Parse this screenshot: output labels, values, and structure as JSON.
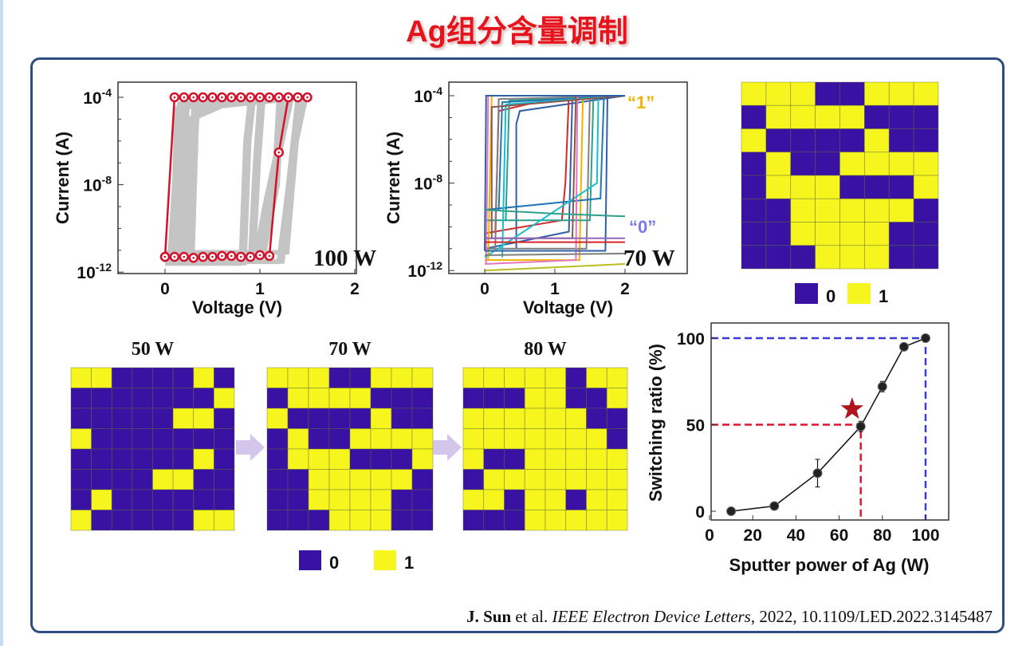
{
  "title": "Ag组分含量调制",
  "colors": {
    "state0": "#3a12a3",
    "state1": "#f6f51e",
    "title": "#e5141c",
    "panel_border": "#2c4d7e",
    "label1": "#f0b400",
    "label0": "#7d78e6",
    "red_curve": "#d4112a",
    "gray_curve": "#c4c4c4",
    "red_dash": "#e0142c",
    "blue_dash": "#3a3ad8",
    "star": "#b0141c"
  },
  "citation": {
    "author": "J. Sun",
    "etal": " et al. ",
    "journal": "IEEE Electron Device Letters",
    "rest": ", 2022, 10.1109/LED.2022.3145487"
  },
  "chart_data": [
    {
      "type": "line",
      "id": "iv-100w",
      "xlabel": "Voltage (V)",
      "ylabel": "Current (A)",
      "xlim": [
        -0.5,
        2
      ],
      "ylim": [
        7e-13,
        0.0005
      ],
      "yscale": "log",
      "xticks": [
        "0",
        "1",
        "2"
      ],
      "xtick_values": [
        0,
        1,
        2
      ],
      "yticks": [
        {
          "base": "10",
          "exp": "-4",
          "value": 0.0001
        },
        {
          "base": "10",
          "exp": "-8",
          "value": 1e-08
        },
        {
          "base": "10",
          "exp": "-12",
          "value": 1e-12
        }
      ],
      "annotation": "100 W",
      "highlight": [
        [
          0,
          5e-12
        ],
        [
          0.1,
          5e-12
        ],
        [
          0.2,
          5e-12
        ],
        [
          0.3,
          4.5e-12
        ],
        [
          0.4,
          5e-12
        ],
        [
          0.5,
          5e-12
        ],
        [
          0.6,
          5.5e-12
        ],
        [
          0.7,
          5.5e-12
        ],
        [
          0.8,
          5e-12
        ],
        [
          0.9,
          5e-12
        ],
        [
          1.0,
          6e-12
        ],
        [
          1.1,
          5.5e-12
        ],
        [
          1.2,
          3e-07
        ],
        [
          1.3,
          0.0001
        ],
        [
          1.4,
          0.0001
        ],
        [
          1.5,
          0.0001
        ],
        [
          1.4,
          0.0001
        ],
        [
          1.3,
          0.0001
        ],
        [
          1.2,
          0.0001
        ],
        [
          1.1,
          0.0001
        ],
        [
          1.0,
          0.0001
        ],
        [
          0.9,
          0.0001
        ],
        [
          0.8,
          0.0001
        ],
        [
          0.7,
          0.0001
        ],
        [
          0.6,
          0.0001
        ],
        [
          0.5,
          0.0001
        ],
        [
          0.4,
          0.0001
        ],
        [
          0.3,
          0.0001
        ],
        [
          0.2,
          0.0001
        ],
        [
          0.1,
          0.0001
        ],
        [
          0,
          5e-12
        ]
      ],
      "background_curves": [
        [
          [
            0,
            4e-12
          ],
          [
            0.95,
            4e-12
          ],
          [
            1.05,
            1e-09
          ],
          [
            1.3,
            0.0001
          ],
          [
            1.45,
            0.0001
          ],
          [
            0.5,
            7e-05
          ],
          [
            0.15,
            5e-05
          ],
          [
            0.05,
            4e-12
          ]
        ],
        [
          [
            0,
            6e-12
          ],
          [
            0.9,
            6e-12
          ],
          [
            0.95,
            1e-07
          ],
          [
            1.0,
            0.0001
          ],
          [
            1.4,
            0.0001
          ],
          [
            0.4,
            6e-05
          ],
          [
            0.2,
            4e-05
          ],
          [
            0.1,
            6e-12
          ]
        ],
        [
          [
            0,
            3e-12
          ],
          [
            1.2,
            3e-12
          ],
          [
            1.3,
            1e-08
          ],
          [
            1.4,
            0.0001
          ],
          [
            1.5,
            0.0001
          ],
          [
            0.6,
            5e-05
          ],
          [
            0.3,
            2e-05
          ],
          [
            0.25,
            3e-12
          ]
        ],
        [
          [
            0,
            5e-12
          ],
          [
            1.0,
            5e-12
          ],
          [
            1.15,
            1e-08
          ],
          [
            1.2,
            0.0001
          ],
          [
            1.5,
            0.0001
          ],
          [
            0.3,
            3e-05
          ],
          [
            0.3,
            1e-05
          ],
          [
            0.2,
            5e-12
          ]
        ],
        [
          [
            0,
            2.5e-12
          ],
          [
            0.8,
            2.5e-12
          ],
          [
            0.85,
            1e-06
          ],
          [
            0.9,
            0.0001
          ],
          [
            1.4,
            0.0001
          ],
          [
            0.5,
            6e-05
          ],
          [
            0.12,
            3e-05
          ],
          [
            0.08,
            2.5e-12
          ]
        ],
        [
          [
            0,
            8e-12
          ],
          [
            1.25,
            8e-12
          ],
          [
            1.35,
            1e-06
          ],
          [
            1.45,
            0.0001
          ],
          [
            1.5,
            0.0001
          ],
          [
            0.7,
            7e-05
          ],
          [
            0.25,
            1e-05
          ],
          [
            0.18,
            8e-12
          ]
        ]
      ]
    },
    {
      "type": "line",
      "id": "iv-70w",
      "xlabel": "Voltage (V)",
      "ylabel": "Current (A)",
      "xlim": [
        -0.5,
        2.9
      ],
      "ylim": [
        7e-13,
        0.0005
      ],
      "yscale": "log",
      "xticks": [
        "0",
        "1",
        "2"
      ],
      "xtick_values": [
        0,
        1,
        2
      ],
      "yticks": [
        {
          "base": "10",
          "exp": "-4",
          "value": 0.0001
        },
        {
          "base": "10",
          "exp": "-8",
          "value": 1e-08
        },
        {
          "base": "10",
          "exp": "-12",
          "value": 1e-12
        }
      ],
      "annotation": "70 W",
      "label_on": "“1”",
      "label_off": "“0”",
      "curves": [
        {
          "color": "#2f5fa8",
          "points": [
            [
              0,
              1e-11
            ],
            [
              1.2,
              6e-11
            ],
            [
              1.25,
              0.0001
            ],
            [
              2,
              0.0001
            ],
            [
              0.5,
              2e-05
            ],
            [
              0.45,
              5e-06
            ],
            [
              0.45,
              1e-11
            ]
          ]
        },
        {
          "color": "#d62728",
          "points": [
            [
              0,
              5e-11
            ],
            [
              1.1,
              2e-10
            ],
            [
              1.15,
              1e-08
            ],
            [
              1.2,
              0.0001
            ],
            [
              2,
              0.0001
            ],
            [
              1.0,
              8e-05
            ],
            [
              0.2,
              2e-05
            ],
            [
              0.15,
              5e-11
            ]
          ]
        },
        {
          "color": "#f0b400",
          "points": [
            [
              0,
              3e-12
            ],
            [
              1.35,
              3e-12
            ],
            [
              1.4,
              0.0001
            ],
            [
              2,
              0.0001
            ],
            [
              0.1,
              0.0001
            ],
            [
              0.05,
              3e-12
            ]
          ]
        },
        {
          "color": "#2ca089",
          "points": [
            [
              0,
              2e-10
            ],
            [
              1.5,
              2e-10
            ],
            [
              1.55,
              0.0001
            ],
            [
              2,
              0.0001
            ],
            [
              0.35,
              6e-05
            ],
            [
              0.3,
              2e-10
            ]
          ]
        },
        {
          "color": "#7f7f7f",
          "points": [
            [
              0,
              1e-11
            ],
            [
              1.45,
              1e-11
            ],
            [
              1.5,
              0.0001
            ],
            [
              2,
              0.0001
            ],
            [
              0.2,
              7e-05
            ],
            [
              0.15,
              1e-11
            ]
          ]
        },
        {
          "color": "#1f77b4",
          "points": [
            [
              0,
              6e-10
            ],
            [
              1.65,
              2e-09
            ],
            [
              1.7,
              0.0001
            ],
            [
              2,
              0.0001
            ],
            [
              0.25,
              5e-05
            ],
            [
              0.2,
              6e-10
            ]
          ]
        },
        {
          "color": "#e377c2",
          "points": [
            [
              0,
              2e-12
            ],
            [
              1.3,
              3e-12
            ],
            [
              1.32,
              0.0001
            ],
            [
              2,
              0.0001
            ],
            [
              0.05,
              0.0001
            ],
            [
              0.02,
              2e-12
            ]
          ]
        },
        {
          "color": "#17becf",
          "points": [
            [
              0,
              4e-12
            ],
            [
              1.6,
              1e-08
            ],
            [
              1.62,
              0.0001
            ],
            [
              2,
              0.0001
            ],
            [
              0.3,
              4e-05
            ],
            [
              0.25,
              4e-12
            ]
          ]
        },
        {
          "color": "#8c564b",
          "points": [
            [
              0,
              3e-11
            ],
            [
              1.25,
              3e-11
            ],
            [
              1.3,
              0.0001
            ],
            [
              2,
              0.0001
            ],
            [
              0.1,
              3e-05
            ],
            [
              0.1,
              3e-11
            ]
          ]
        },
        {
          "color": "#2f5fa8",
          "points": [
            [
              0,
              8e-12
            ],
            [
              1.72,
              8e-12
            ],
            [
              1.75,
              0.0001
            ],
            [
              2,
              0.0001
            ],
            [
              0.02,
              0.0001
            ],
            [
              0.0,
              8e-12
            ]
          ]
        },
        {
          "color": "#d62728",
          "points": [
            [
              0,
              2e-11
            ],
            [
              2,
              2e-11
            ]
          ]
        },
        {
          "color": "#2ca089",
          "points": [
            [
              0,
              6e-10
            ],
            [
              1.0,
              4e-10
            ],
            [
              2,
              3e-10
            ]
          ]
        },
        {
          "color": "#7f7f7f",
          "points": [
            [
              0,
              5e-12
            ],
            [
              2,
              6e-12
            ]
          ]
        },
        {
          "color": "#bcbd22",
          "points": [
            [
              0,
              1e-12
            ],
            [
              2,
              2e-12
            ]
          ]
        },
        {
          "color": "#9467bd",
          "points": [
            [
              0,
              3e-11
            ],
            [
              2,
              3e-11
            ]
          ]
        }
      ]
    },
    {
      "type": "scatter",
      "id": "switching-ratio",
      "xlabel": "Sputter power of Ag (W)",
      "ylabel": "Switching ratio (%)",
      "xlim": [
        0,
        110
      ],
      "ylim": [
        -5,
        109
      ],
      "xticks": [
        "0",
        "20",
        "40",
        "60",
        "80",
        "100"
      ],
      "xtick_values": [
        0,
        20,
        40,
        60,
        80,
        100
      ],
      "yticks": [
        "0",
        "50",
        "100"
      ],
      "ytick_values": [
        0,
        50,
        100
      ],
      "x": [
        10,
        30,
        50,
        70,
        80,
        90,
        100
      ],
      "y": [
        0,
        3,
        22,
        49,
        72,
        95,
        100
      ],
      "yerr": [
        1,
        2,
        8,
        3,
        3,
        2,
        0.5
      ],
      "guides": [
        {
          "x": 70,
          "y": 50,
          "color": "red"
        },
        {
          "x": 100,
          "y": 100,
          "color": "blue"
        }
      ],
      "marker_star": {
        "x": 66,
        "y": 59
      }
    },
    {
      "type": "heatmap",
      "id": "map-main",
      "legend": [
        "0",
        "1"
      ],
      "cells": [
        [
          1,
          1,
          1,
          0,
          0,
          1,
          1,
          1
        ],
        [
          0,
          1,
          1,
          1,
          1,
          0,
          0,
          0
        ],
        [
          1,
          0,
          0,
          0,
          0,
          1,
          0,
          0
        ],
        [
          0,
          1,
          0,
          0,
          1,
          1,
          1,
          1
        ],
        [
          0,
          1,
          1,
          1,
          0,
          0,
          0,
          1
        ],
        [
          0,
          0,
          1,
          1,
          1,
          1,
          1,
          0
        ],
        [
          0,
          0,
          1,
          1,
          1,
          1,
          0,
          0
        ],
        [
          0,
          0,
          0,
          1,
          1,
          1,
          0,
          0
        ]
      ]
    },
    {
      "type": "heatmap",
      "id": "map-50w",
      "title": "50 W",
      "cells": [
        [
          1,
          1,
          0,
          0,
          0,
          0,
          1,
          0
        ],
        [
          0,
          0,
          0,
          0,
          0,
          0,
          0,
          1
        ],
        [
          0,
          0,
          0,
          0,
          0,
          1,
          1,
          0
        ],
        [
          1,
          0,
          0,
          0,
          0,
          0,
          0,
          0
        ],
        [
          0,
          0,
          0,
          0,
          0,
          0,
          1,
          0
        ],
        [
          0,
          0,
          0,
          0,
          1,
          1,
          0,
          0
        ],
        [
          0,
          1,
          0,
          0,
          0,
          0,
          0,
          0
        ],
        [
          1,
          0,
          0,
          0,
          0,
          0,
          1,
          1
        ]
      ]
    },
    {
      "type": "heatmap",
      "id": "map-70w",
      "title": "70 W",
      "cells": [
        [
          1,
          1,
          1,
          0,
          0,
          1,
          1,
          1
        ],
        [
          0,
          1,
          1,
          1,
          1,
          0,
          0,
          0
        ],
        [
          1,
          0,
          0,
          0,
          0,
          1,
          0,
          0
        ],
        [
          0,
          1,
          0,
          0,
          1,
          1,
          1,
          1
        ],
        [
          0,
          1,
          1,
          1,
          0,
          0,
          0,
          1
        ],
        [
          0,
          0,
          1,
          1,
          1,
          1,
          1,
          0
        ],
        [
          0,
          0,
          1,
          1,
          1,
          1,
          0,
          0
        ],
        [
          0,
          0,
          0,
          1,
          1,
          1,
          0,
          0
        ]
      ]
    },
    {
      "type": "heatmap",
      "id": "map-80w",
      "title": "80 W",
      "legend": [
        "0",
        "1"
      ],
      "cells": [
        [
          1,
          1,
          1,
          1,
          1,
          0,
          1,
          1
        ],
        [
          0,
          0,
          0,
          1,
          1,
          0,
          0,
          1
        ],
        [
          1,
          1,
          1,
          1,
          1,
          1,
          0,
          0
        ],
        [
          1,
          1,
          1,
          1,
          1,
          1,
          1,
          0
        ],
        [
          1,
          0,
          0,
          1,
          1,
          1,
          1,
          1
        ],
        [
          0,
          1,
          1,
          1,
          1,
          1,
          1,
          1
        ],
        [
          1,
          1,
          0,
          1,
          1,
          0,
          1,
          1
        ],
        [
          0,
          0,
          0,
          1,
          1,
          1,
          1,
          1
        ]
      ]
    }
  ]
}
